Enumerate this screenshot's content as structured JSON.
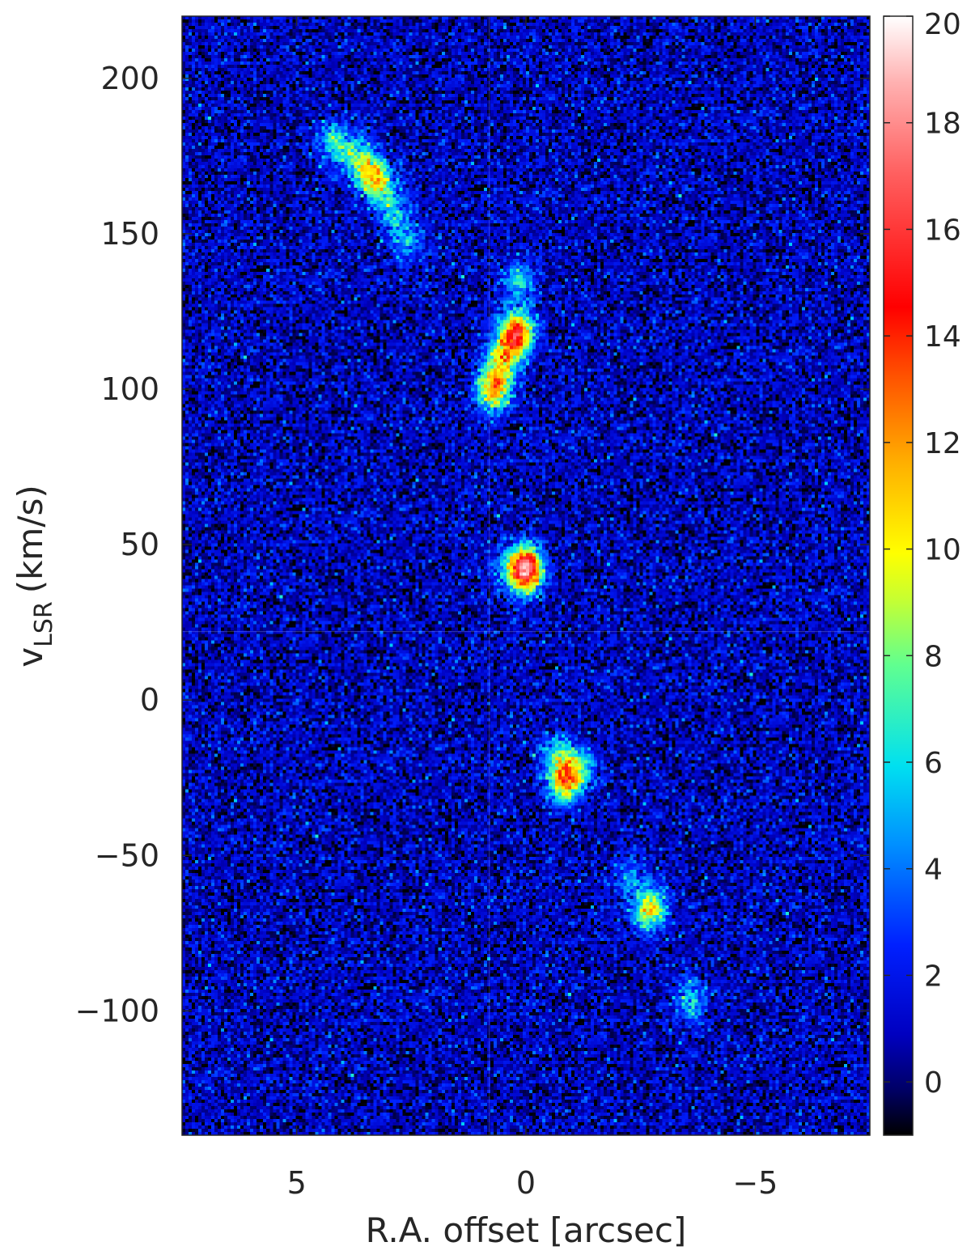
{
  "chart_data": {
    "type": "heatmap",
    "title": "",
    "xlabel": "R.A. offset [arcsec]",
    "ylabel_main": "v",
    "ylabel_sub": "LSR",
    "ylabel_unit": "(km/s)",
    "xlim": [
      7.5,
      -7.5
    ],
    "ylim": [
      -140,
      220
    ],
    "x_ticks": [
      5,
      0,
      -5
    ],
    "x_tick_labels": [
      "5",
      "0",
      "−5"
    ],
    "y_ticks": [
      200,
      150,
      100,
      50,
      0,
      -50,
      -100
    ],
    "y_tick_labels": [
      "200",
      "150",
      "100",
      "50",
      "0",
      "−50",
      "−100"
    ],
    "colorbar": {
      "range": [
        -1,
        20
      ],
      "ticks": [
        20,
        18,
        16,
        14,
        12,
        10,
        8,
        6,
        4,
        2,
        0
      ],
      "tick_labels": [
        "20",
        "18",
        "16",
        "14",
        "12",
        "10",
        "8",
        "6",
        "4",
        "2",
        "0"
      ],
      "colormap": "jet-like"
    },
    "crosshair": {
      "x": 0.8,
      "y": 22
    },
    "noise_level": 1.3,
    "features": [
      {
        "x": 4.2,
        "y": 180,
        "peak": 5
      },
      {
        "x": 3.7,
        "y": 175,
        "peak": 6
      },
      {
        "x": 3.3,
        "y": 168,
        "peak": 10
      },
      {
        "x": 2.9,
        "y": 158,
        "peak": 5
      },
      {
        "x": 2.6,
        "y": 148,
        "peak": 4
      },
      {
        "x": 0.7,
        "y": 100,
        "peak": 11
      },
      {
        "x": 0.5,
        "y": 110,
        "peak": 8
      },
      {
        "x": 0.2,
        "y": 118,
        "peak": 14
      },
      {
        "x": 0.15,
        "y": 135,
        "peak": 5
      },
      {
        "x": 0.0,
        "y": 42,
        "peak": 18
      },
      {
        "x": 0.5,
        "y": 42,
        "peak": 3
      },
      {
        "x": -0.85,
        "y": -26,
        "peak": 10
      },
      {
        "x": -0.7,
        "y": -18,
        "peak": 5
      },
      {
        "x": -1.2,
        "y": -22,
        "peak": 5
      },
      {
        "x": -2.7,
        "y": -67,
        "peak": 9
      },
      {
        "x": -2.2,
        "y": -57,
        "peak": 3
      },
      {
        "x": -3.6,
        "y": -96,
        "peak": 5
      }
    ]
  }
}
